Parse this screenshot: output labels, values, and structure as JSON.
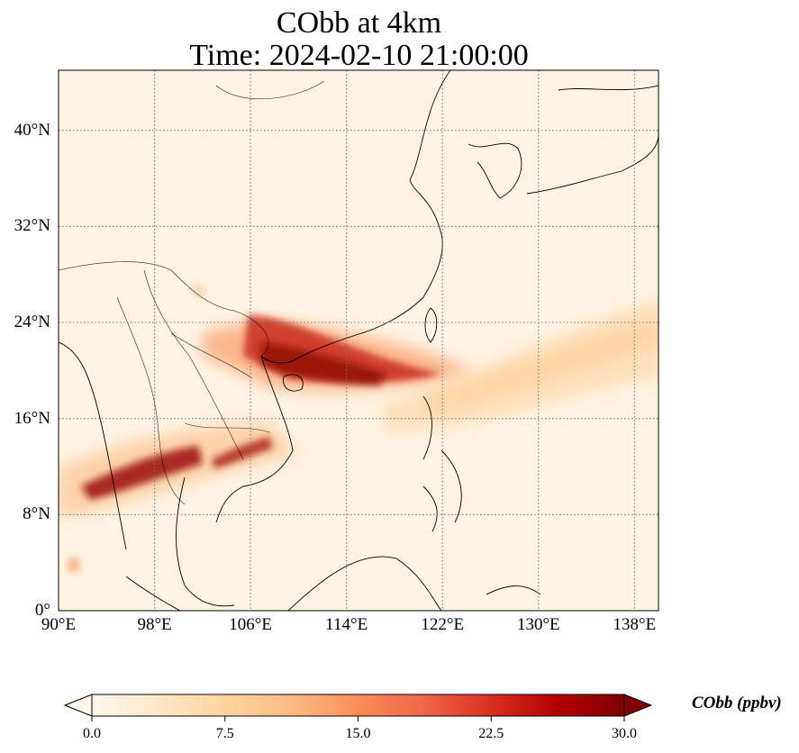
{
  "title": {
    "line1": "CObb at 4km",
    "line2": "Time: 2024-02-10 21:00:00"
  },
  "map": {
    "projection": "PlateCarree",
    "lon_range": [
      90,
      140
    ],
    "lat_range": [
      0,
      45
    ],
    "gridlines": "dotted",
    "coastlines": true,
    "borders": true,
    "x_ticks": [
      "90°E",
      "98°E",
      "106°E",
      "114°E",
      "122°E",
      "130°E",
      "138°E"
    ],
    "y_ticks": [
      "0°",
      "8°N",
      "16°N",
      "24°N",
      "32°N",
      "40°N"
    ]
  },
  "colorbar": {
    "label": "CObb (ppbv)",
    "colormap": "OrRd",
    "min": 0.0,
    "max": 30.0,
    "extend": "both",
    "ticks": [
      "0.0",
      "7.5",
      "15.0",
      "22.5",
      "30.0"
    ],
    "colors": [
      "#fff7ec",
      "#fee8c8",
      "#fdd49e",
      "#fdbb84",
      "#fc8d59",
      "#ef6548",
      "#d7301f",
      "#b30000",
      "#7f0000"
    ]
  },
  "plumes": [
    {
      "name": "south-china-plume",
      "lon_start": 105.5,
      "lat_start": 23.5,
      "lon_end": 125,
      "lat_end": 19.8,
      "peak_ppbv": 27
    },
    {
      "name": "indochina-plume",
      "lon_start": 90,
      "lat_start": 9.5,
      "lon_end": 108,
      "lat_end": 14.5,
      "peak_ppbv": 30
    },
    {
      "name": "pacific-tail",
      "lon_start": 120,
      "lat_start": 18,
      "lon_end": 140,
      "lat_end": 24,
      "peak_ppbv": 7
    }
  ]
}
